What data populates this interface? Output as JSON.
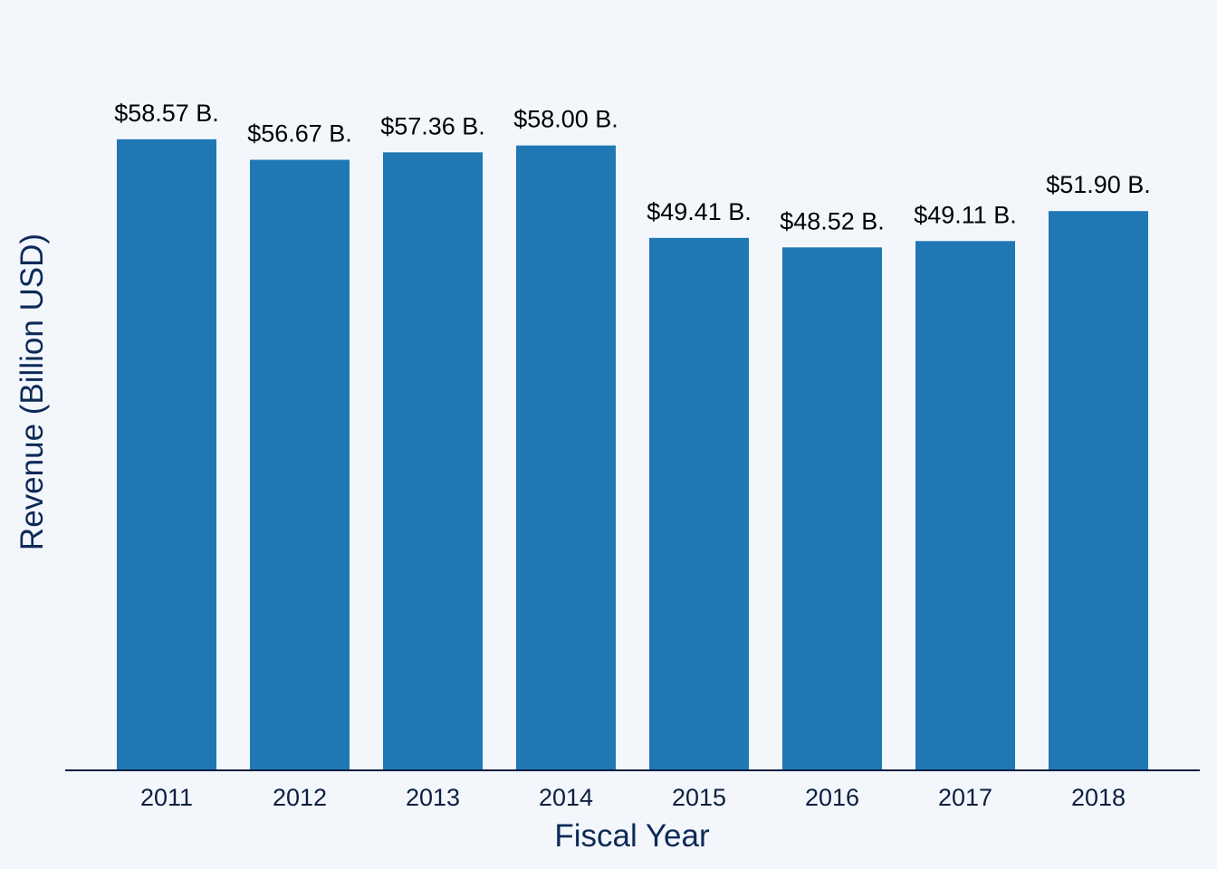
{
  "chart_data": {
    "type": "bar",
    "categories": [
      "2011",
      "2012",
      "2013",
      "2014",
      "2015",
      "2016",
      "2017",
      "2018"
    ],
    "values": [
      58.57,
      56.67,
      57.36,
      58.0,
      49.41,
      48.52,
      49.11,
      51.9
    ],
    "data_labels": [
      "$58.57 B.",
      "$56.67 B.",
      "$57.36 B.",
      "$58.00 B.",
      "$49.41 B.",
      "$48.52 B.",
      "$49.11 B.",
      "$51.90 B."
    ],
    "title": "",
    "xlabel": "Fiscal Year",
    "ylabel": "Revenue (Billion USD)",
    "ylim": [
      0,
      70
    ],
    "grid": false,
    "legend": "none",
    "colors": {
      "bar": "#1f77b4",
      "background": "#f3f7fc",
      "axis_line": "#0d1f3f",
      "text": "#000000"
    }
  }
}
